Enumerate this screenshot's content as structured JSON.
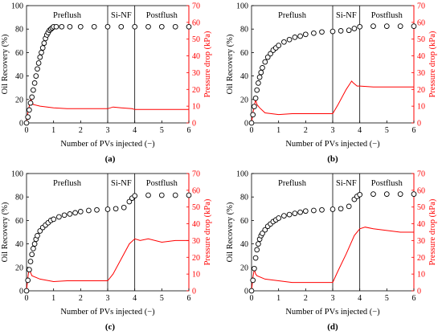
{
  "figure": {
    "panel_labels": [
      "(a)",
      "(b)",
      "(c)",
      "(d)"
    ]
  },
  "chart_data": [
    {
      "type": "scatter+line",
      "panel": "(a)",
      "xlabel": "Number of PVs injected (−)",
      "ylabel_left": "Oil Recovery (%)",
      "ylabel_right": "Pressure drop (kPa)",
      "xlim": [
        0,
        6
      ],
      "ylim_left": [
        0,
        100
      ],
      "ylim_right": [
        0,
        70
      ],
      "xticks": [
        "0",
        "1",
        "2",
        "3",
        "4",
        "5",
        "6"
      ],
      "yticks_left": [
        "0",
        "20",
        "40",
        "60",
        "80",
        "100"
      ],
      "yticks_right": [
        "0",
        "10",
        "20",
        "30",
        "40",
        "50",
        "60",
        "70"
      ],
      "phase_lines": [
        3,
        4
      ],
      "phase_labels": [
        "Preflush",
        "Si-NF",
        "Postflush"
      ],
      "colors": {
        "recovery": "#000000",
        "pressure": "#ff0000"
      },
      "series": [
        {
          "name": "Oil Recovery",
          "axis": "left",
          "marker": "open-circle",
          "points": [
            [
              0,
              0
            ],
            [
              0.05,
              5
            ],
            [
              0.1,
              11
            ],
            [
              0.15,
              17
            ],
            [
              0.2,
              22
            ],
            [
              0.25,
              28
            ],
            [
              0.3,
              34
            ],
            [
              0.35,
              40
            ],
            [
              0.4,
              46
            ],
            [
              0.45,
              51
            ],
            [
              0.5,
              56
            ],
            [
              0.55,
              60
            ],
            [
              0.6,
              64
            ],
            [
              0.65,
              68
            ],
            [
              0.7,
              72
            ],
            [
              0.75,
              75
            ],
            [
              0.8,
              77
            ],
            [
              0.85,
              79
            ],
            [
              0.9,
              80
            ],
            [
              0.95,
              81
            ],
            [
              1.0,
              82
            ],
            [
              1.1,
              82
            ],
            [
              1.3,
              82
            ],
            [
              1.6,
              82
            ],
            [
              2.0,
              82
            ],
            [
              2.5,
              82
            ],
            [
              3.0,
              82
            ],
            [
              3.5,
              82
            ],
            [
              4.0,
              82
            ],
            [
              4.5,
              82
            ],
            [
              5.0,
              82
            ],
            [
              5.5,
              82
            ],
            [
              6.0,
              82
            ]
          ]
        },
        {
          "name": "Pressure drop",
          "axis": "right",
          "marker": "line",
          "points": [
            [
              0,
              0
            ],
            [
              0.05,
              6
            ],
            [
              0.1,
              10
            ],
            [
              0.15,
              14
            ],
            [
              0.2,
              13
            ],
            [
              0.25,
              11
            ],
            [
              0.5,
              10
            ],
            [
              1.0,
              9
            ],
            [
              1.5,
              8.5
            ],
            [
              2.0,
              8.5
            ],
            [
              2.5,
              8.5
            ],
            [
              3.0,
              8.5
            ],
            [
              3.2,
              9.5
            ],
            [
              3.5,
              9
            ],
            [
              3.9,
              8.5
            ],
            [
              4.0,
              8
            ],
            [
              5.0,
              8
            ],
            [
              6.0,
              8
            ]
          ]
        }
      ]
    },
    {
      "type": "scatter+line",
      "panel": "(b)",
      "xlabel": "Number of PVs injected (−)",
      "ylabel_left": "Oil Recovery (%)",
      "ylabel_right": "Pressure drop (kPa)",
      "xlim": [
        0,
        6
      ],
      "ylim_left": [
        0,
        100
      ],
      "ylim_right": [
        0,
        70
      ],
      "xticks": [
        "0",
        "1",
        "2",
        "3",
        "4",
        "5",
        "6"
      ],
      "yticks_left": [
        "0",
        "20",
        "40",
        "60",
        "80",
        "100"
      ],
      "yticks_right": [
        "0",
        "10",
        "20",
        "30",
        "40",
        "50",
        "60",
        "70"
      ],
      "phase_lines": [
        3,
        4
      ],
      "phase_labels": [
        "Preflush",
        "Si-NF",
        "Postflush"
      ],
      "colors": {
        "recovery": "#000000",
        "pressure": "#ff0000"
      },
      "series": [
        {
          "name": "Oil Recovery",
          "axis": "left",
          "marker": "open-circle",
          "points": [
            [
              0,
              0
            ],
            [
              0.05,
              7
            ],
            [
              0.1,
              14
            ],
            [
              0.15,
              21
            ],
            [
              0.2,
              28
            ],
            [
              0.25,
              34
            ],
            [
              0.3,
              39
            ],
            [
              0.35,
              43
            ],
            [
              0.4,
              47
            ],
            [
              0.5,
              52
            ],
            [
              0.6,
              56
            ],
            [
              0.7,
              59
            ],
            [
              0.8,
              62
            ],
            [
              0.9,
              64
            ],
            [
              1.0,
              66
            ],
            [
              1.2,
              69
            ],
            [
              1.4,
              71
            ],
            [
              1.6,
              73
            ],
            [
              1.8,
              74
            ],
            [
              2.0,
              75.5
            ],
            [
              2.3,
              76.5
            ],
            [
              2.6,
              77.5
            ],
            [
              3.0,
              78
            ],
            [
              3.3,
              78.5
            ],
            [
              3.6,
              79
            ],
            [
              3.8,
              80.5
            ],
            [
              4.0,
              82
            ],
            [
              4.5,
              82.5
            ],
            [
              5.0,
              82.5
            ],
            [
              5.5,
              82.5
            ],
            [
              6.0,
              82.5
            ]
          ]
        },
        {
          "name": "Pressure drop",
          "axis": "right",
          "marker": "line",
          "points": [
            [
              0,
              0
            ],
            [
              0.05,
              6
            ],
            [
              0.1,
              10
            ],
            [
              0.15,
              14
            ],
            [
              0.2,
              11
            ],
            [
              0.3,
              9
            ],
            [
              0.5,
              6
            ],
            [
              1.0,
              5
            ],
            [
              1.5,
              5.5
            ],
            [
              2.0,
              5.5
            ],
            [
              2.5,
              5.5
            ],
            [
              3.0,
              5.5
            ],
            [
              3.2,
              11
            ],
            [
              3.5,
              20
            ],
            [
              3.7,
              25
            ],
            [
              3.75,
              24
            ],
            [
              3.9,
              22
            ],
            [
              4.0,
              22
            ],
            [
              4.5,
              21.5
            ],
            [
              5.0,
              21.5
            ],
            [
              6.0,
              21.5
            ]
          ]
        }
      ]
    },
    {
      "type": "scatter+line",
      "panel": "(c)",
      "xlabel": "Number of PVs injected (−)",
      "ylabel_left": "Oil Recovery (%)",
      "ylabel_right": "Pressure drop (kPa)",
      "xlim": [
        0,
        6
      ],
      "ylim_left": [
        0,
        100
      ],
      "ylim_right": [
        0,
        70
      ],
      "xticks": [
        "0",
        "1",
        "2",
        "3",
        "4",
        "5",
        "6"
      ],
      "yticks_left": [
        "0",
        "20",
        "40",
        "60",
        "80",
        "100"
      ],
      "yticks_right": [
        "0",
        "10",
        "20",
        "30",
        "40",
        "50",
        "60",
        "70"
      ],
      "phase_lines": [
        3,
        4
      ],
      "phase_labels": [
        "Preflush",
        "Si-NF",
        "Postflush"
      ],
      "colors": {
        "recovery": "#000000",
        "pressure": "#ff0000"
      },
      "series": [
        {
          "name": "Oil Recovery",
          "axis": "left",
          "marker": "open-circle",
          "points": [
            [
              0,
              0
            ],
            [
              0.05,
              9
            ],
            [
              0.1,
              18
            ],
            [
              0.15,
              25
            ],
            [
              0.2,
              31
            ],
            [
              0.25,
              36
            ],
            [
              0.3,
              40
            ],
            [
              0.35,
              44
            ],
            [
              0.4,
              47
            ],
            [
              0.5,
              51
            ],
            [
              0.6,
              54
            ],
            [
              0.7,
              56
            ],
            [
              0.8,
              58
            ],
            [
              0.9,
              60
            ],
            [
              1.0,
              61
            ],
            [
              1.2,
              63
            ],
            [
              1.4,
              64.5
            ],
            [
              1.6,
              65.5
            ],
            [
              1.8,
              66.5
            ],
            [
              2.0,
              67.5
            ],
            [
              2.3,
              68.5
            ],
            [
              2.6,
              69
            ],
            [
              3.0,
              69.5
            ],
            [
              3.3,
              70
            ],
            [
              3.6,
              71
            ],
            [
              3.8,
              76
            ],
            [
              3.9,
              79
            ],
            [
              4.0,
              81
            ],
            [
              4.5,
              81.5
            ],
            [
              5.0,
              81.5
            ],
            [
              5.5,
              81.5
            ],
            [
              6.0,
              81.5
            ]
          ]
        },
        {
          "name": "Pressure drop",
          "axis": "right",
          "marker": "line",
          "points": [
            [
              0,
              0
            ],
            [
              0.05,
              8
            ],
            [
              0.1,
              14
            ],
            [
              0.15,
              11
            ],
            [
              0.2,
              9
            ],
            [
              0.5,
              7
            ],
            [
              1.0,
              5.5
            ],
            [
              1.5,
              6
            ],
            [
              2.0,
              6
            ],
            [
              2.5,
              6
            ],
            [
              3.0,
              6
            ],
            [
              3.2,
              10
            ],
            [
              3.5,
              19
            ],
            [
              3.8,
              28
            ],
            [
              4.0,
              31
            ],
            [
              4.2,
              30
            ],
            [
              4.5,
              31
            ],
            [
              5.0,
              29
            ],
            [
              5.5,
              30
            ],
            [
              6.0,
              30
            ]
          ]
        }
      ]
    },
    {
      "type": "scatter+line",
      "panel": "(d)",
      "xlabel": "Number of PVs injected (−)",
      "ylabel_left": "Oil Recovery (%)",
      "ylabel_right": "Pressure drop (kPa)",
      "xlim": [
        0,
        6
      ],
      "ylim_left": [
        0,
        100
      ],
      "ylim_right": [
        0,
        70
      ],
      "xticks": [
        "0",
        "1",
        "2",
        "3",
        "4",
        "5",
        "6"
      ],
      "yticks_left": [
        "0",
        "20",
        "40",
        "60",
        "80",
        "100"
      ],
      "yticks_right": [
        "0",
        "10",
        "20",
        "30",
        "40",
        "50",
        "60",
        "70"
      ],
      "phase_lines": [
        3,
        4
      ],
      "phase_labels": [
        "Preflush",
        "Si-NF",
        "Postflush"
      ],
      "colors": {
        "recovery": "#000000",
        "pressure": "#ff0000"
      },
      "series": [
        {
          "name": "Oil Recovery",
          "axis": "left",
          "marker": "open-circle",
          "points": [
            [
              0,
              0
            ],
            [
              0.05,
              9
            ],
            [
              0.1,
              19
            ],
            [
              0.15,
              28
            ],
            [
              0.2,
              35
            ],
            [
              0.25,
              40
            ],
            [
              0.3,
              44
            ],
            [
              0.35,
              47
            ],
            [
              0.4,
              49
            ],
            [
              0.5,
              52
            ],
            [
              0.6,
              55
            ],
            [
              0.7,
              57
            ],
            [
              0.8,
              59
            ],
            [
              0.9,
              60.5
            ],
            [
              1.0,
              62
            ],
            [
              1.2,
              64
            ],
            [
              1.4,
              65
            ],
            [
              1.6,
              66
            ],
            [
              1.8,
              67
            ],
            [
              2.0,
              68
            ],
            [
              2.3,
              68.5
            ],
            [
              2.6,
              69
            ],
            [
              3.0,
              69.5
            ],
            [
              3.3,
              70
            ],
            [
              3.6,
              72
            ],
            [
              3.8,
              78
            ],
            [
              3.9,
              80.5
            ],
            [
              4.0,
              82
            ],
            [
              4.5,
              82.5
            ],
            [
              5.0,
              82.5
            ],
            [
              5.5,
              82.5
            ],
            [
              6.0,
              82.5
            ]
          ]
        },
        {
          "name": "Pressure drop",
          "axis": "right",
          "marker": "line",
          "points": [
            [
              0,
              0
            ],
            [
              0.05,
              8
            ],
            [
              0.1,
              13
            ],
            [
              0.15,
              10
            ],
            [
              0.2,
              9
            ],
            [
              0.5,
              7
            ],
            [
              1.0,
              6
            ],
            [
              1.5,
              5
            ],
            [
              2.0,
              5
            ],
            [
              2.5,
              5
            ],
            [
              3.0,
              5
            ],
            [
              3.2,
              12
            ],
            [
              3.5,
              22
            ],
            [
              3.8,
              33
            ],
            [
              4.0,
              37
            ],
            [
              4.2,
              38
            ],
            [
              4.5,
              37
            ],
            [
              5.0,
              36
            ],
            [
              5.5,
              35
            ],
            [
              6.0,
              35
            ]
          ]
        }
      ]
    }
  ]
}
